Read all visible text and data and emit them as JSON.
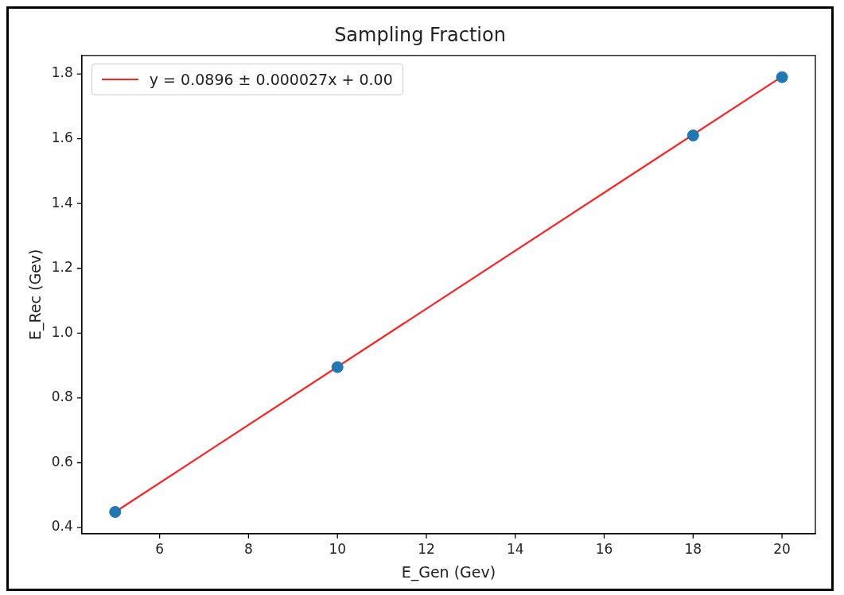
{
  "chart_data": {
    "type": "scatter",
    "title": "Sampling Fraction",
    "xlabel": "E_Gen (Gev)",
    "ylabel": "E_Rec (Gev)",
    "xlim": [
      4.25,
      20.75
    ],
    "xticks": [
      6,
      8,
      10,
      12,
      14,
      16,
      18,
      20
    ],
    "ylim": [
      0.381,
      1.857
    ],
    "yticks": [
      0.4,
      0.6,
      0.8,
      {
        "value": 1,
        "label": "1.0"
      },
      1.2,
      1.4,
      1.6,
      1.8
    ],
    "grid": false,
    "legend": "top left",
    "series": [
      {
        "type": "line",
        "name": "y = 0.0896 ± 0.000027x + 0.00",
        "color": "#ff2020",
        "x": [
          5,
          20
        ],
        "values": [
          0.448,
          1.792
        ],
        "marker": "none",
        "line_style": "solid"
      },
      {
        "type": "scatter",
        "color": "#1f77b4",
        "x": [
          5,
          10,
          18,
          20
        ],
        "values": [
          0.448,
          0.895,
          1.61,
          1.79
        ],
        "marker": "circle"
      }
    ]
  }
}
